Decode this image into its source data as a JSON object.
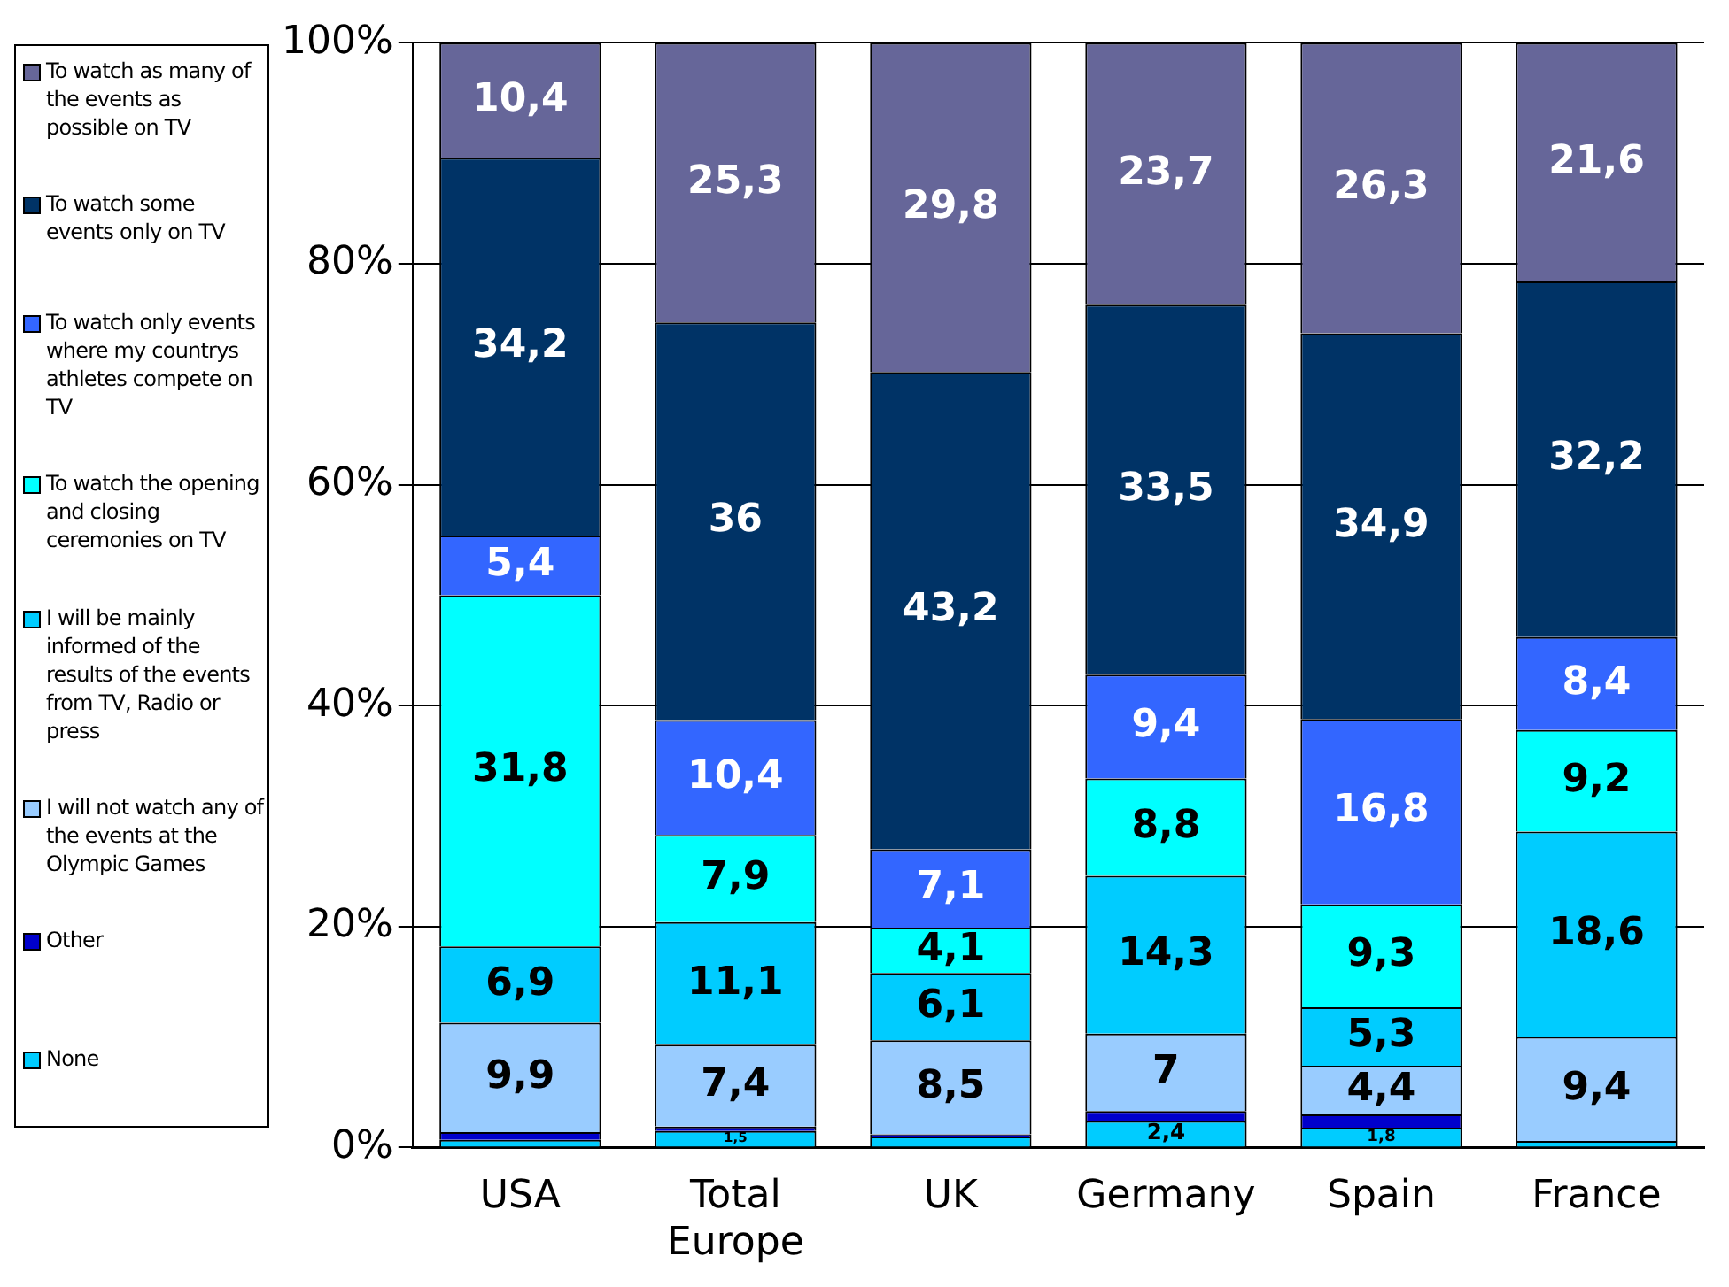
{
  "chart_data": {
    "type": "bar",
    "stacked": true,
    "categories": [
      "USA",
      "Total Europe",
      "UK",
      "Germany",
      "Spain",
      "France"
    ],
    "series": [
      {
        "name": "None",
        "color": "#00ccff",
        "values": [
          0.7,
          1.5,
          1,
          2.4,
          1.8,
          0.6
        ],
        "value_labels": [
          null,
          "1,5",
          null,
          "2,4",
          "1,8",
          null
        ]
      },
      {
        "name": "Other",
        "color": "#0000cc",
        "values": [
          0.7,
          0.4,
          0.2,
          0.9,
          1.2,
          null
        ]
      },
      {
        "name": "I will not watch any of the events at the Olympic Games",
        "color": "#99ccff",
        "values": [
          9.9,
          7.4,
          8.5,
          7,
          4.4,
          9.4
        ],
        "value_labels": [
          "9,9",
          "7,4",
          "8,5",
          "7",
          "4,4",
          "9,4"
        ]
      },
      {
        "name": "I will be mainly informed of the results of the events from TV, Radio or press",
        "color": "#00ccff",
        "values": [
          6.9,
          11.1,
          6.1,
          14.3,
          5.3,
          18.6
        ],
        "value_labels": [
          "6,9",
          "11,1",
          "6,1",
          "14,3",
          "5,3",
          "18,6"
        ]
      },
      {
        "name": "To watch the opening and closing ceremonies on TV",
        "color": "#00ffff",
        "values": [
          31.8,
          7.9,
          4.1,
          8.8,
          9.3,
          9.2
        ],
        "value_labels": [
          "31,8",
          "7,9",
          "4,1",
          "8,8",
          "9,3",
          "9,2"
        ]
      },
      {
        "name": "To watch only events where my countrys athletes compete on TV",
        "color": "#3366ff",
        "values": [
          5.4,
          10.4,
          7.1,
          9.4,
          16.8,
          8.4
        ],
        "value_labels": [
          "5,4",
          "10,4",
          "7,1",
          "9,4",
          "16,8",
          "8,4"
        ]
      },
      {
        "name": "To watch some events only on TV",
        "color": "#003366",
        "values": [
          34.2,
          36,
          43.2,
          33.5,
          34.9,
          32.2
        ],
        "value_labels": [
          "34,2",
          "36",
          "43,2",
          "33,5",
          "34,9",
          "32,2"
        ]
      },
      {
        "name": "To watch as many of the events as possible on TV",
        "color": "#666699",
        "values": [
          10.4,
          25.3,
          29.8,
          23.7,
          26.3,
          21.6
        ],
        "value_labels": [
          "10,4",
          "25,3",
          "29,8",
          "23,7",
          "26,3",
          "21,6"
        ]
      }
    ],
    "ylim": [
      0,
      100
    ],
    "yticks": [
      {
        "value": 0,
        "label": "0%"
      },
      {
        "value": 20,
        "label": "20%"
      },
      {
        "value": 40,
        "label": "40%"
      },
      {
        "value": 60,
        "label": "60%"
      },
      {
        "value": 80,
        "label": "80%"
      },
      {
        "value": 100,
        "label": "100%"
      }
    ],
    "grid": "y",
    "legend": "left"
  }
}
